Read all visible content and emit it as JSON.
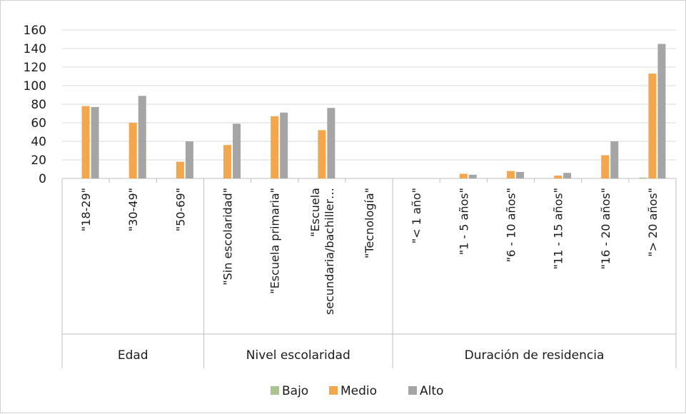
{
  "chart_data": {
    "type": "bar",
    "title": "",
    "xlabel": "",
    "ylabel": "",
    "ylim": [
      0,
      160
    ],
    "yticks": [
      0,
      20,
      40,
      60,
      80,
      100,
      120,
      140,
      160
    ],
    "grid": true,
    "legend_position": "bottom",
    "categories": [
      "\"18-29\"",
      "\"30-49\"",
      "\"50-69\"",
      "\"Sin escolaridad\"",
      "\"Escuela primaria\"",
      "\"Escuela secundaria/bachiller…",
      "\"Tecnología\"",
      "\"< 1 año\"",
      "\"1 - 5 años\"",
      "\"6 - 10 años\"",
      "\"11 - 15 años\"",
      "\"16 - 20 años\"",
      "\"> 20 años\""
    ],
    "groups": [
      {
        "label": "Edad",
        "count": 3
      },
      {
        "label": "Nivel escolaridad",
        "count": 4
      },
      {
        "label": "Duración de residencia",
        "count": 6
      }
    ],
    "series": [
      {
        "name": "Bajo",
        "color": "#a9c48f",
        "values": [
          0,
          0,
          0,
          0,
          0,
          0,
          0,
          0,
          0,
          0,
          0,
          0,
          1
        ]
      },
      {
        "name": "Medio",
        "color": "#f5a54a",
        "values": [
          78,
          60,
          18,
          36,
          67,
          52,
          0,
          0,
          5,
          8,
          3,
          25,
          113
        ]
      },
      {
        "name": "Alto",
        "color": "#a5a5a5",
        "values": [
          77,
          89,
          40,
          59,
          71,
          76,
          0,
          0,
          4,
          7,
          6,
          40,
          145
        ]
      }
    ]
  }
}
